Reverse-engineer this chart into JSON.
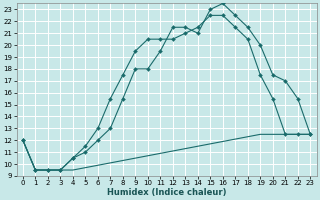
{
  "xlabel": "Humidex (Indice chaleur)",
  "bg_color": "#c8e8e8",
  "grid_color": "#ffffff",
  "line_color": "#1a6b6b",
  "xlim_min": -0.5,
  "xlim_max": 23.5,
  "ylim_min": 9,
  "ylim_max": 23.5,
  "xticks": [
    0,
    1,
    2,
    3,
    4,
    5,
    6,
    7,
    8,
    9,
    10,
    11,
    12,
    13,
    14,
    15,
    16,
    17,
    18,
    19,
    20,
    21,
    22,
    23
  ],
  "yticks": [
    9,
    10,
    11,
    12,
    13,
    14,
    15,
    16,
    17,
    18,
    19,
    20,
    21,
    22,
    23
  ],
  "line1_x": [
    0,
    1,
    2,
    3,
    4,
    5,
    6,
    7,
    8,
    9,
    10,
    11,
    12,
    13,
    14,
    15,
    16,
    17,
    18,
    19,
    20,
    21,
    22,
    23
  ],
  "line1_y": [
    12.0,
    9.5,
    9.5,
    9.5,
    9.5,
    9.7,
    9.9,
    10.1,
    10.3,
    10.5,
    10.7,
    10.9,
    11.1,
    11.3,
    11.5,
    11.7,
    11.9,
    12.1,
    12.3,
    12.5,
    12.5,
    12.5,
    12.5,
    12.5
  ],
  "line2_x": [
    0,
    1,
    2,
    3,
    4,
    5,
    6,
    7,
    8,
    9,
    10,
    11,
    12,
    13,
    14,
    15,
    16,
    17,
    18,
    19,
    20,
    21,
    22,
    23
  ],
  "line2_y": [
    12.0,
    9.5,
    9.5,
    9.5,
    10.5,
    11.5,
    13.0,
    15.5,
    17.5,
    19.5,
    20.5,
    20.5,
    20.5,
    21.0,
    21.5,
    22.5,
    22.5,
    21.5,
    20.5,
    17.5,
    15.5,
    12.5,
    12.5,
    12.5
  ],
  "line3_x": [
    0,
    1,
    2,
    3,
    4,
    5,
    6,
    7,
    8,
    9,
    10,
    11,
    12,
    13,
    14,
    15,
    16,
    17,
    18,
    19,
    20,
    21,
    22,
    23
  ],
  "line3_y": [
    12.0,
    9.5,
    9.5,
    9.5,
    10.5,
    11.0,
    12.0,
    13.0,
    15.5,
    18.0,
    18.0,
    19.5,
    21.5,
    21.5,
    21.0,
    23.0,
    23.5,
    22.5,
    21.5,
    20.0,
    17.5,
    17.0,
    15.5,
    12.5
  ]
}
